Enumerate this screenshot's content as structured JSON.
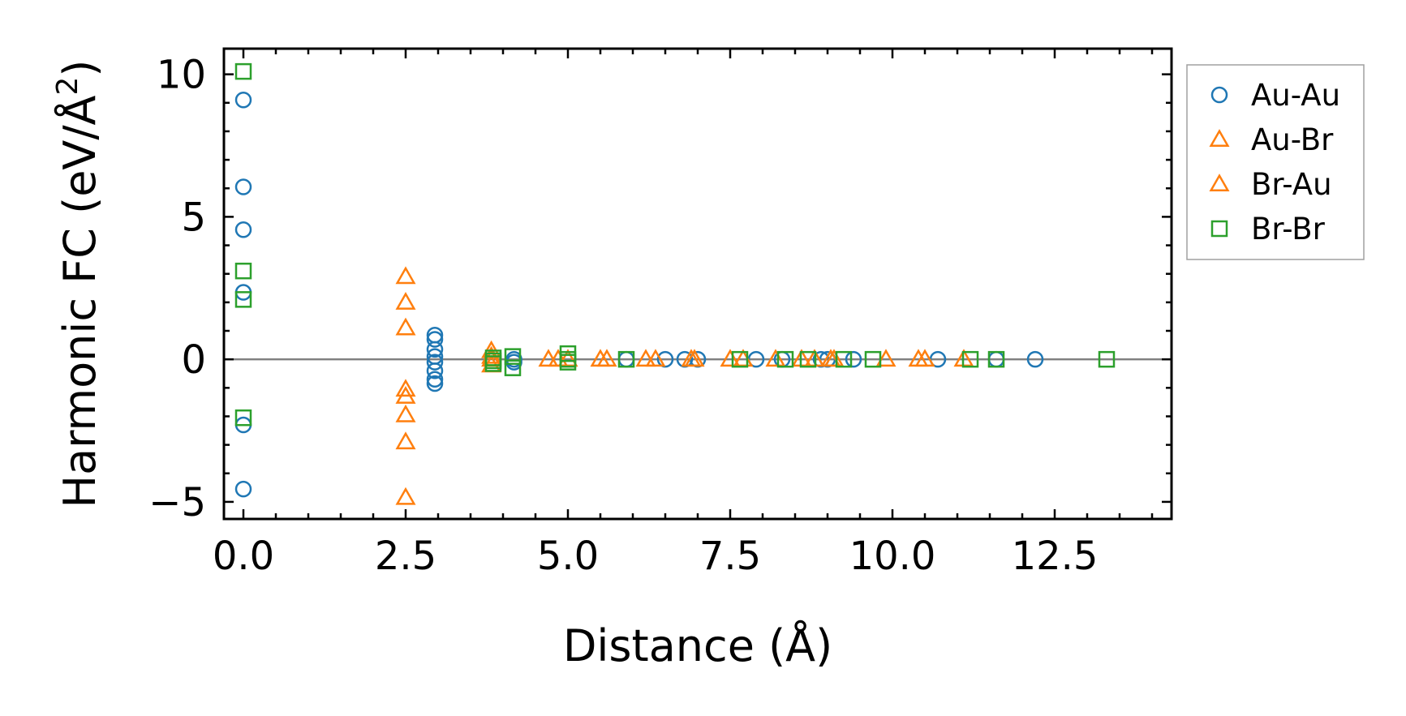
{
  "colors": {
    "au_au": "#1f77b4",
    "au_br": "#ff7f0e",
    "br_br": "#2ca02c",
    "zero_line": "#808080",
    "legend_border": "#a0a0a0"
  },
  "chart_data": {
    "type": "scatter",
    "title": "",
    "xlabel": "Distance (Å)",
    "ylabel": "Harmonic FC (eV/Å",
    "ylabel_superscript": "2",
    "ylabel_suffix": ")",
    "xlim": [
      -0.3,
      14.3
    ],
    "ylim": [
      -5.6,
      10.9
    ],
    "xticks": [
      0.0,
      2.5,
      5.0,
      7.5,
      10.0,
      12.5
    ],
    "xtick_labels": [
      "0.0",
      "2.5",
      "5.0",
      "7.5",
      "10.0",
      "12.5"
    ],
    "yticks": [
      -5,
      0,
      5,
      10
    ],
    "ytick_labels": [
      "−5",
      "0",
      "5",
      "10"
    ],
    "zero_line": 0,
    "legend_position": "outside-right-top",
    "series": [
      {
        "name": "Au-Au",
        "marker": "circle",
        "color_key": "au_au",
        "points": [
          [
            0.0,
            9.1
          ],
          [
            0.0,
            6.05
          ],
          [
            0.0,
            4.55
          ],
          [
            0.0,
            2.35
          ],
          [
            0.0,
            -2.3
          ],
          [
            0.0,
            -4.55
          ],
          [
            2.95,
            0.85
          ],
          [
            2.95,
            0.7
          ],
          [
            2.95,
            0.35
          ],
          [
            2.95,
            0.1
          ],
          [
            2.95,
            -0.1
          ],
          [
            2.95,
            -0.4
          ],
          [
            2.95,
            -0.7
          ],
          [
            2.95,
            -0.85
          ],
          [
            4.17,
            0.0
          ],
          [
            4.17,
            -0.1
          ],
          [
            5.9,
            0.0
          ],
          [
            6.5,
            0.0
          ],
          [
            6.8,
            0.0
          ],
          [
            7.0,
            0.0
          ],
          [
            7.9,
            0.0
          ],
          [
            8.3,
            0.0
          ],
          [
            8.9,
            0.0
          ],
          [
            9.0,
            0.0
          ],
          [
            9.4,
            0.0
          ],
          [
            10.7,
            0.0
          ],
          [
            11.6,
            0.0
          ],
          [
            12.2,
            0.0
          ]
        ]
      },
      {
        "name": "Au-Br",
        "marker": "triangle",
        "color_key": "au_br",
        "points": [
          [
            2.5,
            2.9
          ],
          [
            2.5,
            2.0
          ],
          [
            2.5,
            1.1
          ],
          [
            2.5,
            -1.05
          ],
          [
            2.5,
            -1.3
          ],
          [
            2.5,
            -1.95
          ],
          [
            2.5,
            -2.9
          ],
          [
            2.5,
            -4.85
          ],
          [
            3.82,
            0.3
          ],
          [
            3.82,
            0.0
          ],
          [
            3.82,
            -0.2
          ],
          [
            4.7,
            0.0
          ],
          [
            4.85,
            0.0
          ],
          [
            5.5,
            0.0
          ],
          [
            5.6,
            0.0
          ],
          [
            6.2,
            0.0
          ],
          [
            6.35,
            0.0
          ],
          [
            6.9,
            0.0
          ],
          [
            7.5,
            0.0
          ],
          [
            7.7,
            0.0
          ],
          [
            8.2,
            0.0
          ],
          [
            8.6,
            0.0
          ],
          [
            8.8,
            0.0
          ],
          [
            9.05,
            0.0
          ],
          [
            9.9,
            0.0
          ],
          [
            10.4,
            0.0
          ],
          [
            11.1,
            0.0
          ]
        ]
      },
      {
        "name": "Br-Au",
        "marker": "triangle",
        "color_key": "au_br",
        "points": [
          [
            3.82,
            0.1
          ],
          [
            5.0,
            0.0
          ],
          [
            6.95,
            0.0
          ],
          [
            9.1,
            0.0
          ],
          [
            10.5,
            0.0
          ]
        ]
      },
      {
        "name": "Br-Br",
        "marker": "square",
        "color_key": "br_br",
        "points": [
          [
            0.0,
            10.1
          ],
          [
            0.0,
            3.1
          ],
          [
            0.0,
            2.1
          ],
          [
            0.0,
            -2.05
          ],
          [
            3.85,
            0.05
          ],
          [
            3.85,
            -0.05
          ],
          [
            3.85,
            -0.15
          ],
          [
            4.15,
            0.1
          ],
          [
            4.15,
            -0.3
          ],
          [
            5.0,
            0.2
          ],
          [
            5.0,
            0.0
          ],
          [
            5.0,
            -0.1
          ],
          [
            5.9,
            0.0
          ],
          [
            7.65,
            0.0
          ],
          [
            8.35,
            0.0
          ],
          [
            8.7,
            0.0
          ],
          [
            9.25,
            0.0
          ],
          [
            9.7,
            0.0
          ],
          [
            11.2,
            0.0
          ],
          [
            11.6,
            0.0
          ],
          [
            13.3,
            0.0
          ]
        ]
      }
    ]
  }
}
